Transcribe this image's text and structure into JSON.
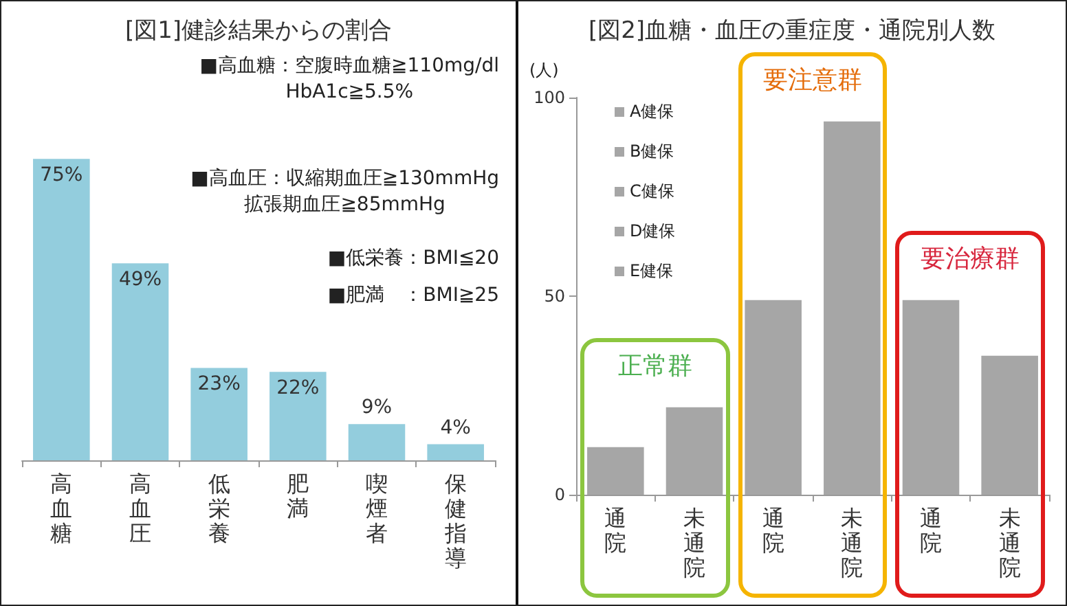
{
  "chart_data": [
    {
      "type": "bar",
      "title": "[図1]健診結果からの割合",
      "categories": [
        "高血糖",
        "高血圧",
        "低栄養",
        "肥満",
        "喫煙者",
        "保健指導"
      ],
      "values": [
        75,
        49,
        23,
        22,
        9,
        4
      ],
      "value_labels": [
        "75%",
        "49%",
        "23%",
        "22%",
        "9%",
        "4%"
      ],
      "color": "#93cddd",
      "tick_labels": "x",
      "annotations": [
        "■高血糖：空腹時血糖≧110mg/dl\nHbA1c≧5.5%",
        "■高血圧：収縮期血圧≧130mmHg\n拡張期血圧≧85mmHg",
        "■低栄養：BMI≦20",
        "■肥満　：BMI≧25"
      ]
    },
    {
      "type": "bar",
      "title": "[図2]血糖・血圧の重症度・通院別人数",
      "ylabel": "(人)",
      "categories": [
        "通院",
        "未通院",
        "通院",
        "未通院",
        "通院",
        "未通院"
      ],
      "values": [
        12,
        22,
        49,
        94,
        49,
        35
      ],
      "color": "#a6a6a6",
      "ylim": [
        0,
        100
      ],
      "yticks": [
        0,
        50,
        100
      ],
      "annotations": [
        "A健保",
        "B健保",
        "C健保",
        "D健保",
        "E健保",
        "正常群",
        "要注意群",
        "要治療群"
      ]
    }
  ]
}
